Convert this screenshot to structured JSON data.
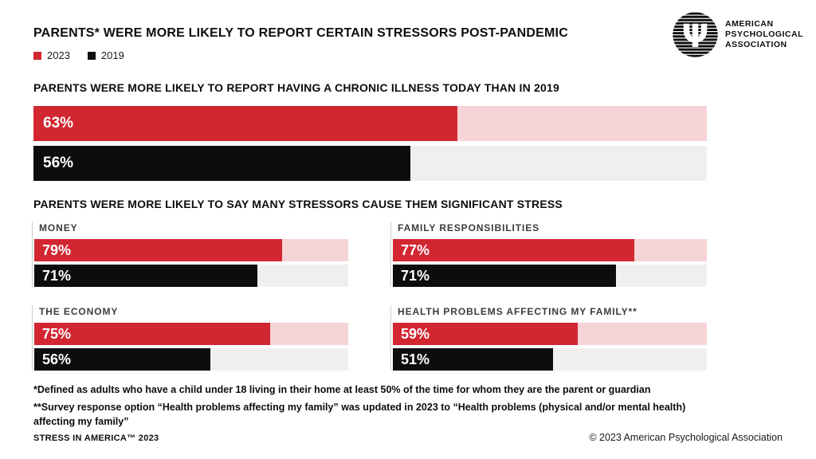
{
  "title": "PARENTS* WERE MORE LIKELY TO REPORT CERTAIN STRESSORS POST-PANDEMIC",
  "legend": [
    {
      "label": "2023",
      "color": "#d22630"
    },
    {
      "label": "2019",
      "color": "#0d0d0d"
    }
  ],
  "logo": {
    "line1": "AMERICAN",
    "line2": "PSYCHOLOGICAL",
    "line3": "ASSOCIATION"
  },
  "colors": {
    "red_2023": "#d22630",
    "red_track": "#f6d3d6",
    "black_2019": "#0d0d0d",
    "gray_track": "#f0efee",
    "text": "#0d0d0d"
  },
  "chart_data": [
    {
      "type": "bar",
      "orientation": "horizontal",
      "title": "PARENTS WERE MORE LIKELY TO REPORT HAVING A CHRONIC ILLNESS TODAY THAN IN 2019",
      "categories": [
        "Chronic illness"
      ],
      "series": [
        {
          "name": "2023",
          "values": [
            63
          ]
        },
        {
          "name": "2019",
          "values": [
            56
          ]
        }
      ],
      "unit": "%",
      "xlim": [
        0,
        100
      ],
      "value_labels": true,
      "legend_position": "top-left"
    },
    {
      "type": "bar",
      "orientation": "horizontal",
      "title": "PARENTS WERE MORE LIKELY TO SAY MANY STRESSORS CAUSE THEM SIGNIFICANT STRESS",
      "categories": [
        "MONEY",
        "FAMILY RESPONSIBILITIES",
        "THE ECONOMY",
        "HEALTH PROBLEMS AFFECTING MY FAMILY**"
      ],
      "series": [
        {
          "name": "2023",
          "values": [
            79,
            77,
            75,
            59
          ]
        },
        {
          "name": "2019",
          "values": [
            71,
            71,
            56,
            51
          ]
        }
      ],
      "unit": "%",
      "xlim": [
        0,
        100
      ],
      "value_labels": true
    }
  ],
  "footnotes": [
    "*Defined as adults who have a child under 18 living in their home at least 50% of the time for whom they are the parent or guardian",
    "**Survey response option “Health problems affecting my family” was updated in 2023 to “Health problems (physical and/or mental health) affecting my family”"
  ],
  "footer": {
    "left": "STRESS IN AMERICA™ 2023",
    "right": "© 2023 American Psychological Association"
  }
}
